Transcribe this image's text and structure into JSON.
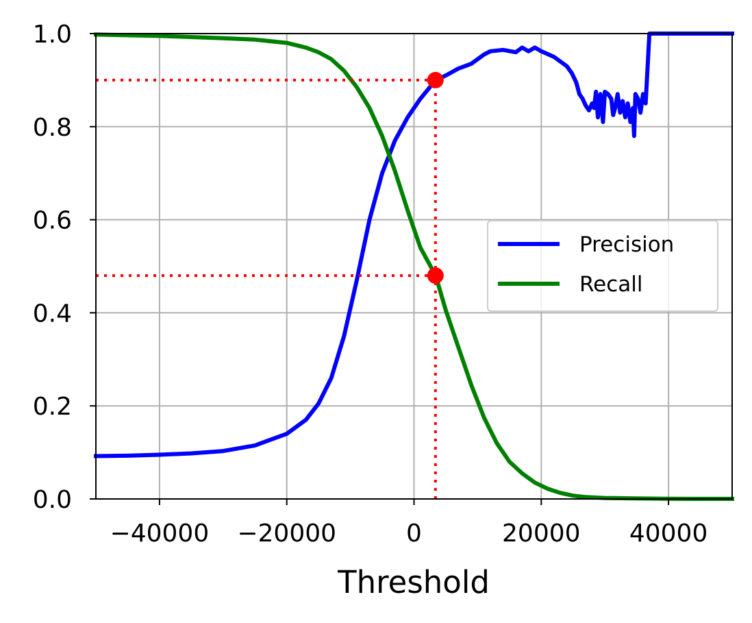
{
  "chart_data": {
    "type": "line",
    "title": "",
    "xlabel": "Threshold",
    "ylabel": "",
    "xlim": [
      -50000,
      50000
    ],
    "ylim": [
      0.0,
      1.0
    ],
    "grid": true,
    "legend_position": "center-right",
    "x_ticks": [
      -40000,
      -20000,
      0,
      20000,
      40000
    ],
    "x_tick_labels": [
      "−40000",
      "−20000",
      "0",
      "20000",
      "40000"
    ],
    "y_ticks": [
      0.0,
      0.2,
      0.4,
      0.6,
      0.8,
      1.0
    ],
    "y_tick_labels": [
      "0.0",
      "0.2",
      "0.4",
      "0.6",
      "0.8",
      "1.0"
    ],
    "series": [
      {
        "name": "Precision",
        "color": "#0000ff",
        "x": [
          -50000,
          -45000,
          -40000,
          -35000,
          -30000,
          -25000,
          -20000,
          -17000,
          -15000,
          -13000,
          -11000,
          -9000,
          -7000,
          -5000,
          -3000,
          -1000,
          1000,
          3400,
          5000,
          7000,
          9000,
          11000,
          12000,
          14000,
          16000,
          17000,
          18000,
          19000,
          20000,
          22000,
          24000,
          24800,
          25500,
          26000,
          26500,
          27000,
          27500,
          28000,
          28300,
          28600,
          28900,
          29300,
          29700,
          30000,
          30500,
          31000,
          31300,
          31600,
          32000,
          32400,
          32800,
          33200,
          33600,
          34000,
          34400,
          34600,
          34800,
          35200,
          35600,
          36000,
          36400,
          37000,
          38000,
          40000,
          45000,
          50000
        ],
        "y": [
          0.092,
          0.093,
          0.095,
          0.098,
          0.103,
          0.115,
          0.14,
          0.17,
          0.205,
          0.26,
          0.35,
          0.47,
          0.6,
          0.7,
          0.77,
          0.82,
          0.86,
          0.9,
          0.91,
          0.925,
          0.935,
          0.955,
          0.962,
          0.965,
          0.96,
          0.97,
          0.962,
          0.97,
          0.962,
          0.95,
          0.93,
          0.915,
          0.895,
          0.87,
          0.86,
          0.845,
          0.835,
          0.85,
          0.84,
          0.875,
          0.82,
          0.87,
          0.81,
          0.875,
          0.87,
          0.86,
          0.825,
          0.84,
          0.87,
          0.83,
          0.855,
          0.82,
          0.85,
          0.81,
          0.84,
          0.78,
          0.87,
          0.86,
          0.83,
          0.87,
          0.85,
          1.0,
          1.0,
          1.0,
          1.0,
          1.0
        ]
      },
      {
        "name": "Recall",
        "color": "#008000",
        "x": [
          -50000,
          -40000,
          -30000,
          -25000,
          -20000,
          -17000,
          -15000,
          -13000,
          -11000,
          -9000,
          -7000,
          -5000,
          -3000,
          -1000,
          1000,
          3400,
          5000,
          7000,
          9000,
          11000,
          13000,
          15000,
          17000,
          19000,
          21000,
          23000,
          25000,
          27000,
          30000,
          35000,
          40000,
          45000,
          50000
        ],
        "y": [
          0.998,
          0.995,
          0.99,
          0.987,
          0.98,
          0.97,
          0.96,
          0.945,
          0.92,
          0.885,
          0.84,
          0.78,
          0.705,
          0.62,
          0.54,
          0.48,
          0.405,
          0.325,
          0.245,
          0.175,
          0.12,
          0.08,
          0.055,
          0.035,
          0.022,
          0.013,
          0.007,
          0.004,
          0.002,
          0.001,
          0.0005,
          0.0002,
          0.0001
        ]
      }
    ],
    "markers": [
      {
        "x": 3370,
        "y": 0.9,
        "color": "#ff0000"
      },
      {
        "x": 3370,
        "y": 0.48,
        "color": "#ff0000"
      }
    ],
    "guide_lines": [
      {
        "type": "horizontal",
        "x": [
          -50000,
          3370
        ],
        "y": 0.9,
        "color": "#ff0000",
        "style": "dotted"
      },
      {
        "type": "horizontal",
        "x": [
          -50000,
          3370
        ],
        "y": 0.48,
        "color": "#ff0000",
        "style": "dotted"
      },
      {
        "type": "vertical",
        "x": 3370,
        "y": [
          0.0,
          0.9
        ],
        "color": "#ff0000",
        "style": "dotted"
      }
    ]
  }
}
